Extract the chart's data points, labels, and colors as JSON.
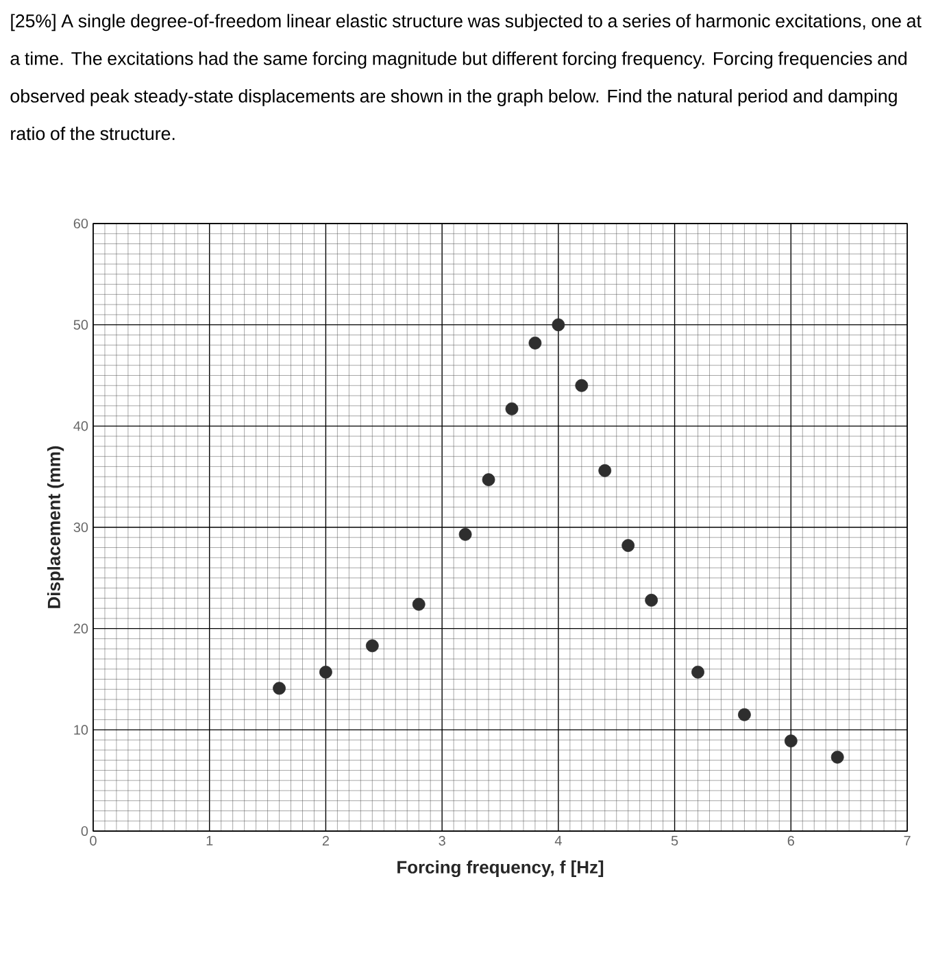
{
  "chart_data": {
    "type": "scatter",
    "title": "[25%] A single degree-of-freedom linear elastic structure was subjected to a series of harmonic excitations, one at a time. The excitations had the same forcing magnitude but different forcing frequency. Forcing frequencies and observed peak steady-state displacements are shown in the graph below. Find the natural period and damping ratio of the structure.",
    "xlabel": "Forcing frequency, f [Hz]",
    "ylabel": "Displacement (mm)",
    "x": [
      1.6,
      2.0,
      2.4,
      2.8,
      3.2,
      3.4,
      3.6,
      3.8,
      4.0,
      4.2,
      4.4,
      4.6,
      4.8,
      5.2,
      5.6,
      6.0,
      6.4
    ],
    "values": [
      14.1,
      15.7,
      18.3,
      22.4,
      29.3,
      34.7,
      41.7,
      48.2,
      50.0,
      44.0,
      35.6,
      28.2,
      22.8,
      15.7,
      11.5,
      8.9,
      7.3
    ],
    "color": "#2e2e2e",
    "marker": "circle",
    "xlim": [
      0,
      7
    ],
    "ylim": [
      0,
      60
    ],
    "xticks": [
      0,
      1,
      2,
      3,
      4,
      5,
      6,
      7
    ],
    "yticks": [
      0,
      10,
      20,
      30,
      40,
      50,
      60
    ],
    "grid": true
  }
}
